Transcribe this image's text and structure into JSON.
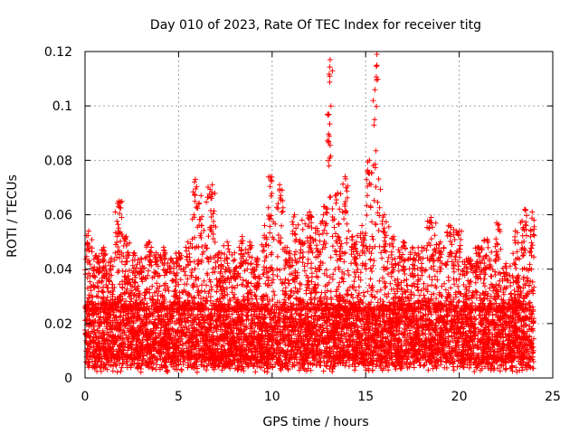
{
  "chart_data": {
    "type": "scatter",
    "title": "Day 010 of 2023, Rate Of TEC Index for receiver titg",
    "xlabel": "GPS time / hours",
    "ylabel": "ROTI / TECUs",
    "xlim": [
      0,
      25
    ],
    "ylim": [
      0,
      0.12
    ],
    "xticks": [
      0,
      5,
      10,
      15,
      20,
      25
    ],
    "xtick_labels": [
      "0",
      "5",
      "10",
      "15",
      "20",
      "25"
    ],
    "yticks": [
      0,
      0.02,
      0.04,
      0.06,
      0.08,
      0.1,
      0.12
    ],
    "ytick_labels": [
      "0",
      "0.02",
      "0.04",
      "0.06",
      "0.08",
      "0.1",
      "0.12"
    ],
    "grid": true,
    "marker": "+",
    "color": "#ff0000",
    "data_range_hours": [
      0,
      24
    ],
    "baseline_band": [
      0.005,
      0.025
    ],
    "series": [
      {
        "name": "ROTI",
        "envelope": [
          {
            "x": 0.2,
            "y": 0.054
          },
          {
            "x": 0.6,
            "y": 0.045
          },
          {
            "x": 1.0,
            "y": 0.048
          },
          {
            "x": 1.4,
            "y": 0.044
          },
          {
            "x": 1.8,
            "y": 0.065
          },
          {
            "x": 2.2,
            "y": 0.052
          },
          {
            "x": 2.6,
            "y": 0.046
          },
          {
            "x": 3.0,
            "y": 0.044
          },
          {
            "x": 3.4,
            "y": 0.05
          },
          {
            "x": 3.8,
            "y": 0.046
          },
          {
            "x": 4.2,
            "y": 0.048
          },
          {
            "x": 4.6,
            "y": 0.044
          },
          {
            "x": 5.0,
            "y": 0.046
          },
          {
            "x": 5.5,
            "y": 0.05
          },
          {
            "x": 5.9,
            "y": 0.073
          },
          {
            "x": 6.2,
            "y": 0.067
          },
          {
            "x": 6.8,
            "y": 0.071
          },
          {
            "x": 7.2,
            "y": 0.046
          },
          {
            "x": 7.6,
            "y": 0.05
          },
          {
            "x": 8.0,
            "y": 0.046
          },
          {
            "x": 8.4,
            "y": 0.052
          },
          {
            "x": 8.8,
            "y": 0.05
          },
          {
            "x": 9.2,
            "y": 0.044
          },
          {
            "x": 9.6,
            "y": 0.056
          },
          {
            "x": 9.9,
            "y": 0.074
          },
          {
            "x": 10.4,
            "y": 0.071
          },
          {
            "x": 10.8,
            "y": 0.048
          },
          {
            "x": 11.2,
            "y": 0.06
          },
          {
            "x": 11.6,
            "y": 0.058
          },
          {
            "x": 12.0,
            "y": 0.061
          },
          {
            "x": 12.4,
            "y": 0.055
          },
          {
            "x": 12.8,
            "y": 0.063
          },
          {
            "x": 13.1,
            "y": 0.117
          },
          {
            "x": 13.5,
            "y": 0.068
          },
          {
            "x": 13.9,
            "y": 0.074
          },
          {
            "x": 14.3,
            "y": 0.052
          },
          {
            "x": 14.8,
            "y": 0.056
          },
          {
            "x": 15.2,
            "y": 0.08
          },
          {
            "x": 15.6,
            "y": 0.119
          },
          {
            "x": 16.0,
            "y": 0.06
          },
          {
            "x": 16.5,
            "y": 0.052
          },
          {
            "x": 17.0,
            "y": 0.05
          },
          {
            "x": 17.5,
            "y": 0.048
          },
          {
            "x": 18.0,
            "y": 0.048
          },
          {
            "x": 18.5,
            "y": 0.059
          },
          {
            "x": 19.0,
            "y": 0.05
          },
          {
            "x": 19.5,
            "y": 0.056
          },
          {
            "x": 20.0,
            "y": 0.054
          },
          {
            "x": 20.5,
            "y": 0.044
          },
          {
            "x": 21.0,
            "y": 0.048
          },
          {
            "x": 21.5,
            "y": 0.051
          },
          {
            "x": 22.0,
            "y": 0.057
          },
          {
            "x": 22.5,
            "y": 0.042
          },
          {
            "x": 23.0,
            "y": 0.054
          },
          {
            "x": 23.5,
            "y": 0.062
          },
          {
            "x": 23.9,
            "y": 0.061
          }
        ]
      }
    ],
    "annotations": []
  }
}
